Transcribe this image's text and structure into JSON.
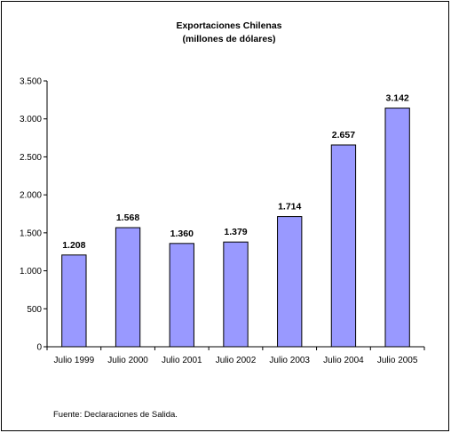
{
  "chart_data": {
    "type": "bar",
    "title": "Exportaciones Chilenas",
    "subtitle": "(millones de dólares)",
    "categories": [
      "Julio 1999",
      "Julio 2000",
      "Julio 2001",
      "Julio 2002",
      "Julio 2003",
      "Julio 2004",
      "Julio 2005"
    ],
    "values": [
      1208,
      1568,
      1360,
      1379,
      1714,
      2657,
      3142
    ],
    "value_labels": [
      "1.208",
      "1.568",
      "1.360",
      "1.379",
      "1.714",
      "2.657",
      "3.142"
    ],
    "y_ticks": [
      0,
      500,
      1000,
      1500,
      2000,
      2500,
      3000,
      3500
    ],
    "y_tick_labels": [
      "0",
      "500",
      "1.000",
      "1.500",
      "2.000",
      "2.500",
      "3.000",
      "3.500"
    ],
    "ylim": [
      0,
      3500
    ],
    "xlabel": "",
    "ylabel": "",
    "grid": false,
    "legend": "none",
    "bar_color": "#9999ff",
    "bar_border_color": "#000000"
  },
  "source_note": "Fuente: Declaraciones de Salida."
}
